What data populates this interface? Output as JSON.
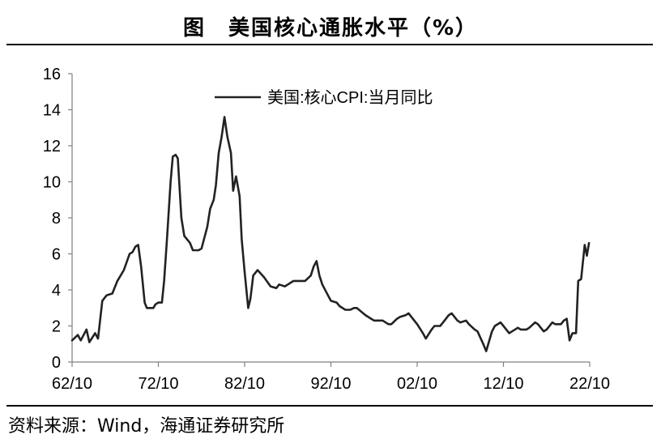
{
  "figure_title": "图　美国核心通胀水平（%）",
  "source_text": "资料来源：Wind，海通证券研究所",
  "chart_data": {
    "type": "line",
    "title": "",
    "xlabel": "",
    "ylabel": "",
    "ylim": [
      0,
      16
    ],
    "y_ticks": [
      "0",
      "2",
      "4",
      "6",
      "8",
      "10",
      "12",
      "14",
      "16"
    ],
    "x_ticks": [
      "62/10",
      "72/10",
      "82/10",
      "92/10",
      "02/10",
      "12/10",
      "22/10"
    ],
    "x_range": [
      "1962-10",
      "2022-10"
    ],
    "grid": false,
    "legend_position": "top-center",
    "series": [
      {
        "name": "美国:核心CPI:当月同比",
        "color": "#222222",
        "x": [
          "1962-10",
          "1963-06",
          "1963-10",
          "1964-06",
          "1964-10",
          "1965-06",
          "1965-10",
          "1966-04",
          "1966-10",
          "1967-06",
          "1968-01",
          "1968-10",
          "1969-06",
          "1969-10",
          "1970-02",
          "1970-06",
          "1970-10",
          "1971-03",
          "1971-06",
          "1971-10",
          "1972-03",
          "1972-06",
          "1972-10",
          "1973-03",
          "1973-06",
          "1973-10",
          "1974-03",
          "1974-06",
          "1974-10",
          "1975-01",
          "1975-06",
          "1975-10",
          "1976-06",
          "1976-10",
          "1977-06",
          "1977-10",
          "1978-06",
          "1978-10",
          "1979-03",
          "1979-06",
          "1979-10",
          "1980-02",
          "1980-06",
          "1980-10",
          "1981-03",
          "1981-06",
          "1981-10",
          "1982-03",
          "1982-06",
          "1982-10",
          "1983-03",
          "1983-06",
          "1983-10",
          "1984-04",
          "1985-01",
          "1985-10",
          "1986-06",
          "1986-10",
          "1987-06",
          "1987-10",
          "1988-06",
          "1988-10",
          "1989-06",
          "1989-10",
          "1990-06",
          "1990-10",
          "1991-02",
          "1991-06",
          "1991-10",
          "1992-06",
          "1992-10",
          "1993-06",
          "1993-10",
          "1994-06",
          "1995-01",
          "1995-06",
          "1995-10",
          "1996-10",
          "1997-06",
          "1997-10",
          "1998-06",
          "1998-10",
          "1999-06",
          "1999-10",
          "2000-06",
          "2000-10",
          "2001-06",
          "2001-10",
          "2002-06",
          "2002-10",
          "2003-06",
          "2003-10",
          "2004-06",
          "2004-10",
          "2005-06",
          "2005-10",
          "2006-06",
          "2006-10",
          "2007-06",
          "2007-10",
          "2008-06",
          "2008-10",
          "2009-06",
          "2009-10",
          "2010-06",
          "2010-10",
          "2011-06",
          "2011-10",
          "2012-06",
          "2012-10",
          "2013-06",
          "2013-10",
          "2014-06",
          "2014-10",
          "2015-06",
          "2015-10",
          "2016-06",
          "2016-10",
          "2017-06",
          "2017-10",
          "2018-06",
          "2018-10",
          "2019-06",
          "2019-10",
          "2020-02",
          "2020-06",
          "2020-10",
          "2021-03",
          "2021-06",
          "2021-10",
          "2022-03",
          "2022-06",
          "2022-09"
        ],
        "y": [
          1.2,
          1.5,
          1.2,
          1.8,
          1.1,
          1.6,
          1.3,
          3.4,
          3.7,
          3.8,
          4.5,
          5.1,
          6.0,
          6.1,
          6.4,
          6.5,
          5.3,
          3.3,
          3.0,
          3.0,
          3.0,
          3.2,
          3.3,
          3.3,
          4.5,
          6.8,
          10.0,
          11.4,
          11.5,
          11.3,
          8.0,
          7.0,
          6.6,
          6.2,
          6.2,
          6.3,
          7.5,
          8.5,
          9.0,
          9.8,
          11.6,
          12.5,
          13.6,
          12.5,
          11.6,
          9.5,
          10.3,
          9.2,
          6.8,
          5.0,
          3.0,
          3.5,
          4.8,
          5.1,
          4.7,
          4.2,
          4.1,
          4.3,
          4.2,
          4.3,
          4.5,
          4.5,
          4.5,
          4.5,
          4.8,
          5.3,
          5.6,
          4.8,
          4.3,
          3.7,
          3.4,
          3.3,
          3.1,
          2.9,
          2.9,
          3.0,
          3.0,
          2.6,
          2.4,
          2.3,
          2.3,
          2.3,
          2.1,
          2.1,
          2.4,
          2.5,
          2.6,
          2.7,
          2.3,
          2.1,
          1.6,
          1.3,
          1.8,
          2.0,
          2.0,
          2.2,
          2.6,
          2.7,
          2.3,
          2.2,
          2.3,
          2.1,
          1.8,
          1.7,
          1.0,
          0.6,
          1.7,
          2.0,
          2.2,
          2.0,
          1.6,
          1.7,
          1.9,
          1.8,
          1.8,
          1.9,
          2.2,
          2.1,
          1.7,
          1.8,
          2.2,
          2.1,
          2.1,
          2.3,
          2.4,
          1.2,
          1.6,
          1.6,
          4.5,
          4.6,
          6.5,
          5.9,
          6.6
        ]
      }
    ]
  }
}
